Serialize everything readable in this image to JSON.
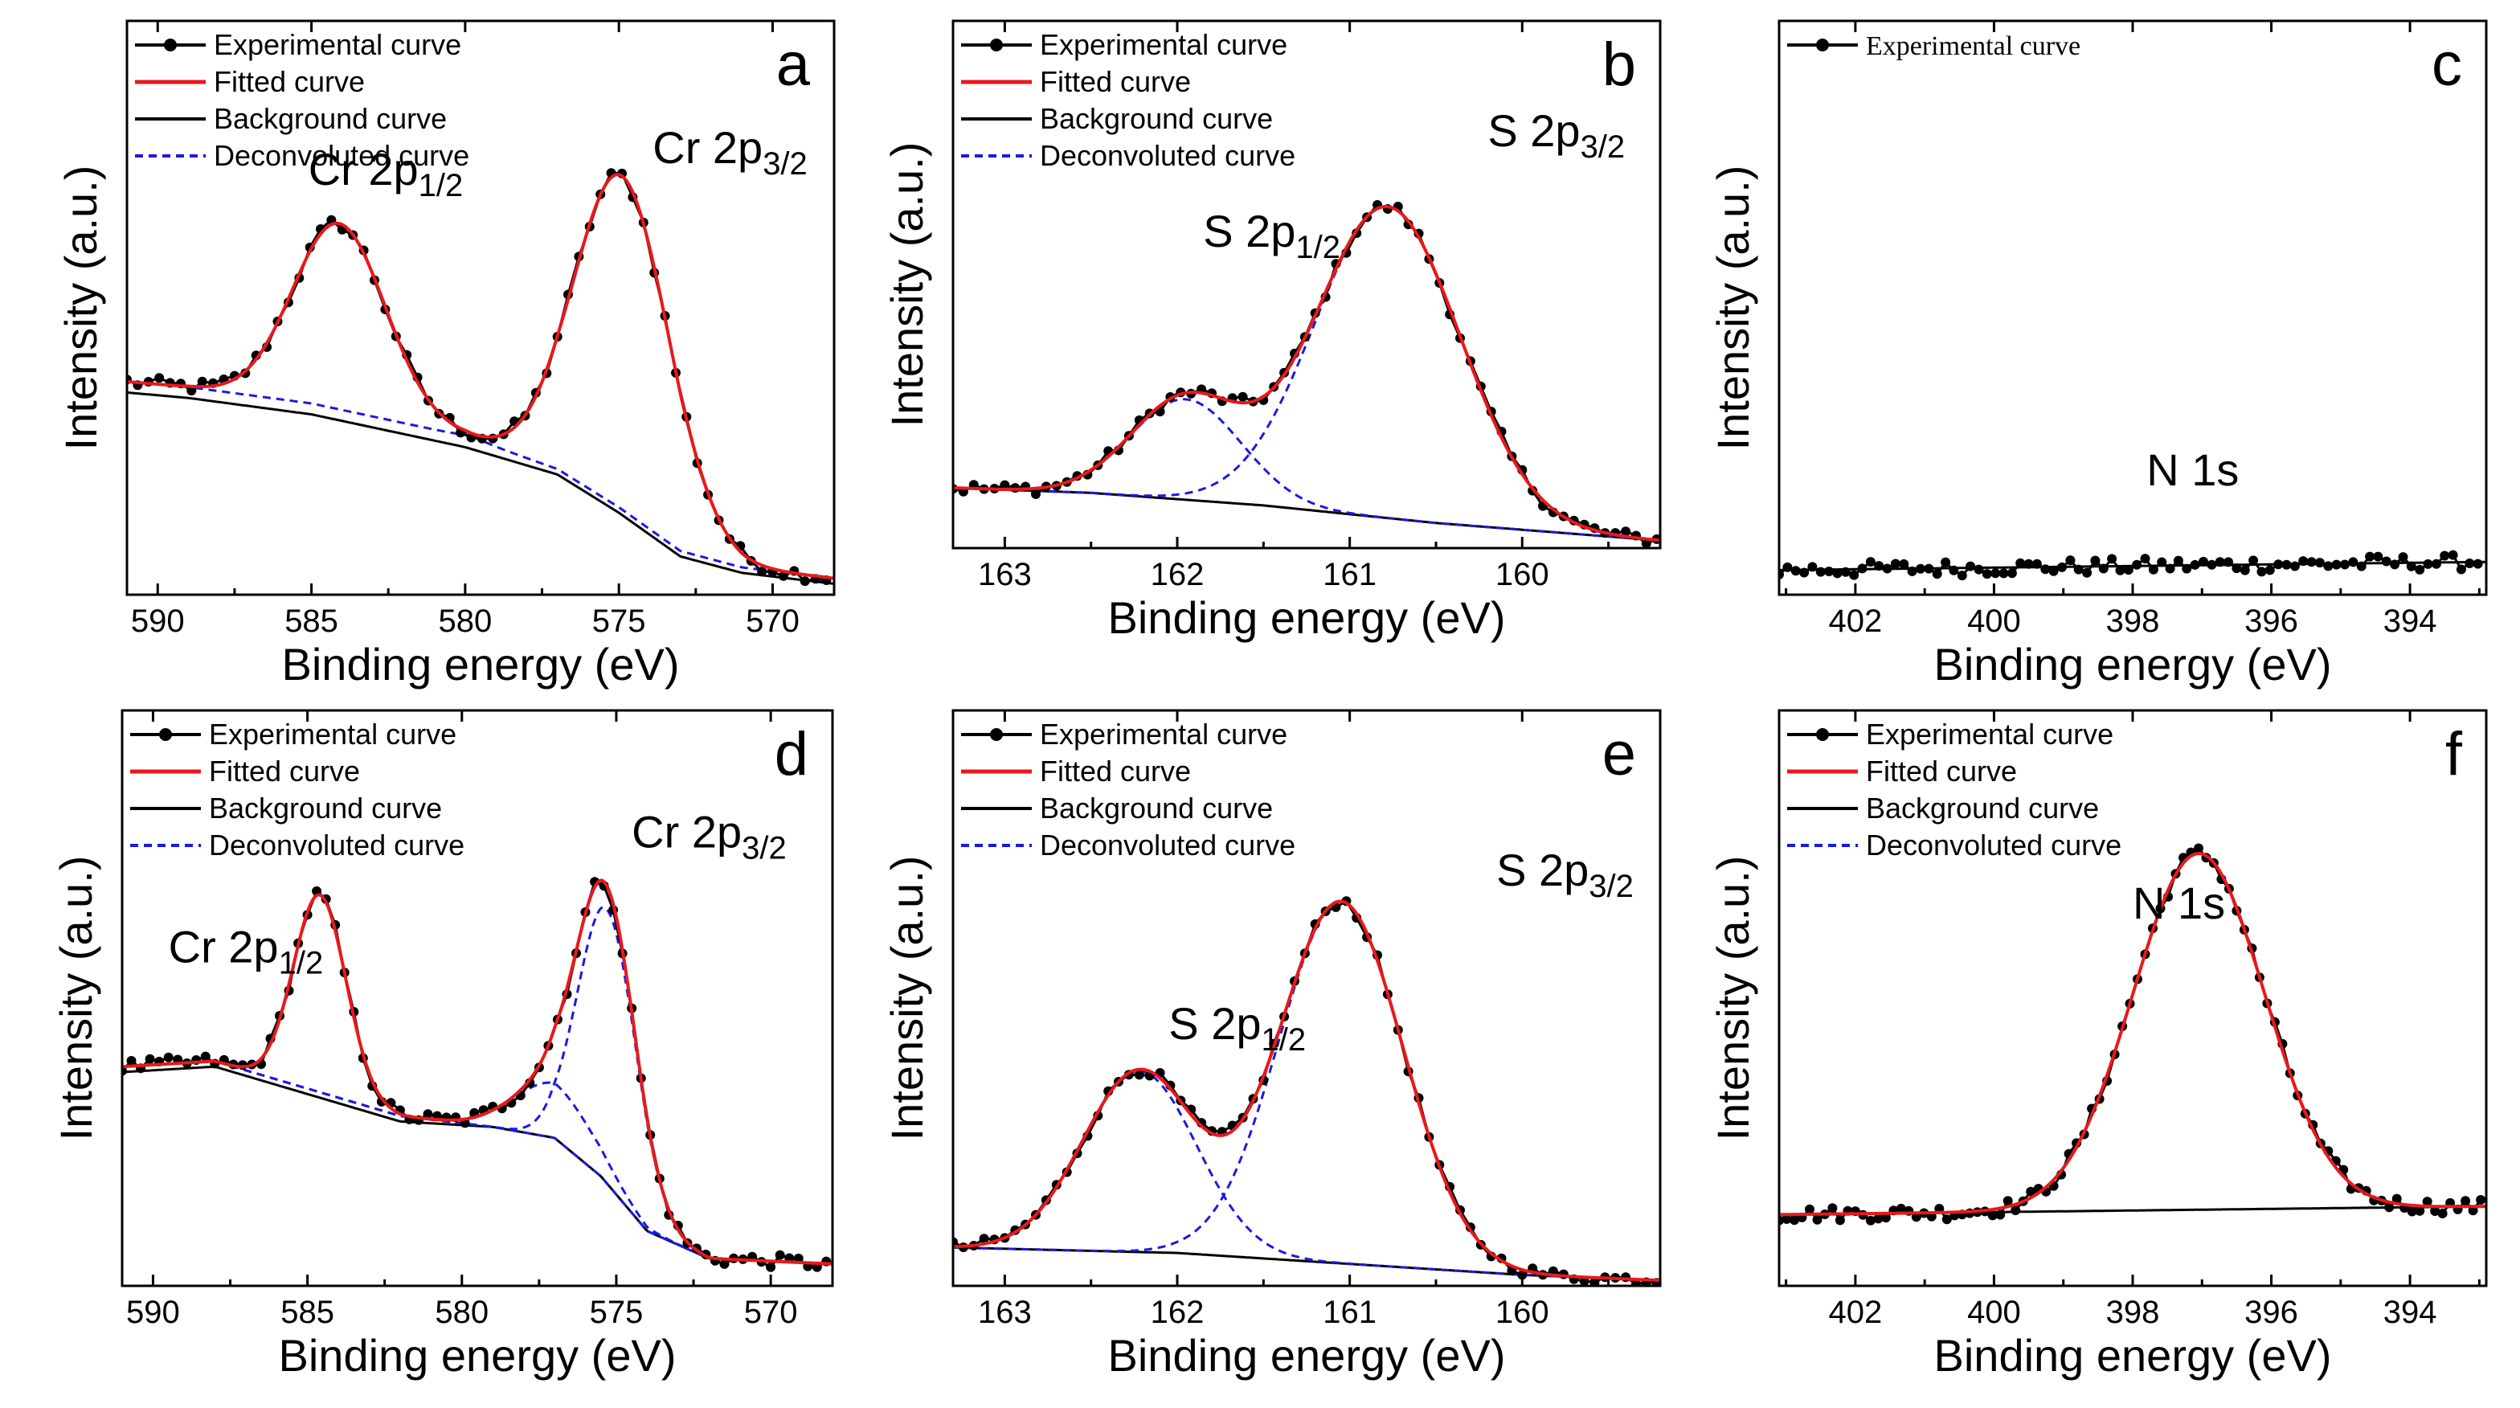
{
  "figure": {
    "description_panels": [
      "a",
      "b",
      "c",
      "d",
      "e",
      "f"
    ]
  },
  "legend_labels": {
    "experimental": "Experimental curve",
    "fitted": "Fitted curve",
    "background": "Background curve",
    "deconvoluted": "Deconvoluted curve"
  },
  "colors": {
    "experimental": "#000000",
    "fitted": "#e8191c",
    "background": "#000000",
    "deconvoluted": "#1a1ae0"
  },
  "chart_data": [
    {
      "id": "a",
      "type": "line",
      "letter": "a",
      "xlabel": "Binding energy (eV)",
      "ylabel": "Intensity (a.u.)",
      "xlim": [
        591,
        568
      ],
      "ylim": [
        0,
        1.05
      ],
      "xticks": [
        590,
        585,
        580,
        575,
        570
      ],
      "legend": [
        "experimental",
        "fitted",
        "background",
        "deconvoluted"
      ],
      "legend_font": "sans",
      "peaks_labels": [
        {
          "main": "Cr 2p",
          "sub": "1/2",
          "x": 585.1,
          "y": 0.75
        },
        {
          "main": "Cr 2p",
          "sub": "3/2",
          "x": 573.9,
          "y": 0.79
        }
      ],
      "background": {
        "x": [
          591,
          589,
          585,
          580,
          577,
          575,
          573,
          571,
          568
        ],
        "y": [
          0.37,
          0.36,
          0.33,
          0.27,
          0.22,
          0.15,
          0.07,
          0.04,
          0.02
        ]
      },
      "baseline": {
        "x": [
          591,
          589,
          585,
          580,
          577,
          575,
          573,
          571,
          568
        ],
        "y": [
          0.39,
          0.38,
          0.35,
          0.29,
          0.23,
          0.16,
          0.08,
          0.05,
          0.03
        ]
      },
      "peaks": [
        {
          "center": 584.1,
          "height": 0.34,
          "width": 1.5
        },
        {
          "center": 574.9,
          "height": 0.61,
          "width": 1.55
        }
      ],
      "noise": 0.012,
      "point_step": 0.35
    },
    {
      "id": "b",
      "type": "line",
      "letter": "b",
      "xlabel": "Binding energy (eV)",
      "ylabel": "Intensity (a.u.)",
      "xlim": [
        163.3,
        159.2
      ],
      "ylim": [
        0,
        1.05
      ],
      "xticks": [
        163,
        162,
        161,
        160
      ],
      "legend": [
        "experimental",
        "fitted",
        "background",
        "deconvoluted"
      ],
      "legend_font": "sans",
      "peaks_labels": [
        {
          "main": "S 2p",
          "sub": "1/2",
          "x": 161.85,
          "y": 0.6
        },
        {
          "main": "S 2p",
          "sub": "3/2",
          "x": 160.2,
          "y": 0.8
        }
      ],
      "background": {
        "x": [
          163.3,
          162.5,
          161.5,
          160.5,
          159.2
        ],
        "y": [
          0.12,
          0.11,
          0.085,
          0.05,
          0.015
        ]
      },
      "baseline": {
        "x": [
          163.3,
          162.5,
          161.5,
          160.5,
          159.2
        ],
        "y": [
          0.12,
          0.11,
          0.085,
          0.05,
          0.015
        ]
      },
      "peaks": [
        {
          "center": 161.95,
          "height": 0.2,
          "width": 0.32
        },
        {
          "center": 160.78,
          "height": 0.62,
          "width": 0.42
        }
      ],
      "noise": 0.012,
      "point_step": 0.06
    },
    {
      "id": "c",
      "type": "line",
      "letter": "c",
      "xlabel": "Binding energy (eV)",
      "ylabel": "Intensity (a.u.)",
      "xlim": [
        403.1,
        392.9
      ],
      "ylim": [
        0,
        1.05
      ],
      "xticks": [
        402,
        400,
        398,
        396,
        394
      ],
      "legend": [
        "experimental"
      ],
      "legend_font": "serif",
      "peaks_labels": [
        {
          "main": "N 1s",
          "sub": "",
          "x": 397.8,
          "y": 0.2
        }
      ],
      "background": {
        "x": [
          403.1,
          392.9
        ],
        "y": [
          0.045,
          0.06
        ]
      },
      "baseline": {
        "x": [
          403.1,
          392.9
        ],
        "y": [
          0.045,
          0.06
        ]
      },
      "peaks": [],
      "noise": 0.014,
      "point_step": 0.12,
      "show_fit": false
    },
    {
      "id": "d",
      "type": "line",
      "letter": "d",
      "xlabel": "Binding energy (eV)",
      "ylabel": "Intensity (a.u.)",
      "xlim": [
        591,
        568
      ],
      "ylim": [
        0,
        1.05
      ],
      "xticks": [
        590,
        585,
        580,
        575,
        570
      ],
      "legend": [
        "experimental",
        "fitted",
        "background",
        "deconvoluted"
      ],
      "legend_font": "sans",
      "peaks_labels": [
        {
          "main": "Cr 2p",
          "sub": "1/2",
          "x": 589.5,
          "y": 0.59
        },
        {
          "main": "Cr 2p",
          "sub": "3/2",
          "x": 574.5,
          "y": 0.8
        }
      ],
      "background": {
        "x": [
          591,
          588,
          585,
          582,
          579,
          577,
          575.5,
          574,
          572,
          568
        ],
        "y": [
          0.39,
          0.4,
          0.35,
          0.3,
          0.29,
          0.27,
          0.2,
          0.1,
          0.05,
          0.04
        ]
      },
      "baseline": {
        "x": [
          591,
          588,
          585,
          582,
          579,
          577,
          575.5,
          574,
          572,
          568
        ],
        "y": [
          0.4,
          0.41,
          0.36,
          0.31,
          0.29,
          0.27,
          0.2,
          0.1,
          0.05,
          0.04
        ]
      },
      "peaks": [
        {
          "center": 584.6,
          "height": 0.36,
          "width": 0.85
        },
        {
          "center": 575.3,
          "height": 0.5,
          "width": 0.95
        },
        {
          "center": 577.0,
          "height": 0.1,
          "width": 1.3
        }
      ],
      "noise": 0.012,
      "point_step": 0.3
    },
    {
      "id": "e",
      "type": "line",
      "letter": "e",
      "xlabel": "Binding energy (eV)",
      "ylabel": "Intensity (a.u.)",
      "xlim": [
        163.3,
        159.2
      ],
      "ylim": [
        0,
        1.05
      ],
      "xticks": [
        163,
        162,
        161,
        160
      ],
      "legend": [
        "experimental",
        "fitted",
        "background",
        "deconvoluted"
      ],
      "legend_font": "sans",
      "peaks_labels": [
        {
          "main": "S 2p",
          "sub": "1/2",
          "x": 162.05,
          "y": 0.45
        },
        {
          "main": "S 2p",
          "sub": "3/2",
          "x": 160.15,
          "y": 0.73
        }
      ],
      "background": {
        "x": [
          163.3,
          162,
          161,
          160,
          159.2
        ],
        "y": [
          0.07,
          0.06,
          0.04,
          0.02,
          0.01
        ]
      },
      "baseline": {
        "x": [
          163.3,
          162,
          161,
          160,
          159.2
        ],
        "y": [
          0.07,
          0.06,
          0.04,
          0.02,
          0.01
        ]
      },
      "peaks": [
        {
          "center": 162.22,
          "height": 0.33,
          "width": 0.33
        },
        {
          "center": 161.05,
          "height": 0.66,
          "width": 0.36
        }
      ],
      "noise": 0.01,
      "point_step": 0.06
    },
    {
      "id": "f",
      "type": "line",
      "letter": "f",
      "xlabel": "Binding energy (eV)",
      "ylabel": "Intensity (a.u.)",
      "xlim": [
        403.1,
        392.9
      ],
      "ylim": [
        0,
        1.05
      ],
      "xticks": [
        402,
        400,
        398,
        396,
        394
      ],
      "legend": [
        "experimental",
        "fitted",
        "background",
        "deconvoluted"
      ],
      "legend_font": "sans",
      "peaks_labels": [
        {
          "main": "N 1s",
          "sub": "",
          "x": 398.0,
          "y": 0.67
        }
      ],
      "background": {
        "x": [
          403.1,
          392.9
        ],
        "y": [
          0.13,
          0.145
        ]
      },
      "baseline": {
        "x": [
          403.1,
          392.9
        ],
        "y": [
          0.13,
          0.145
        ]
      },
      "peaks": [
        {
          "center": 397.05,
          "height": 0.65,
          "width": 0.95
        }
      ],
      "noise": 0.013,
      "point_step": 0.11
    }
  ]
}
